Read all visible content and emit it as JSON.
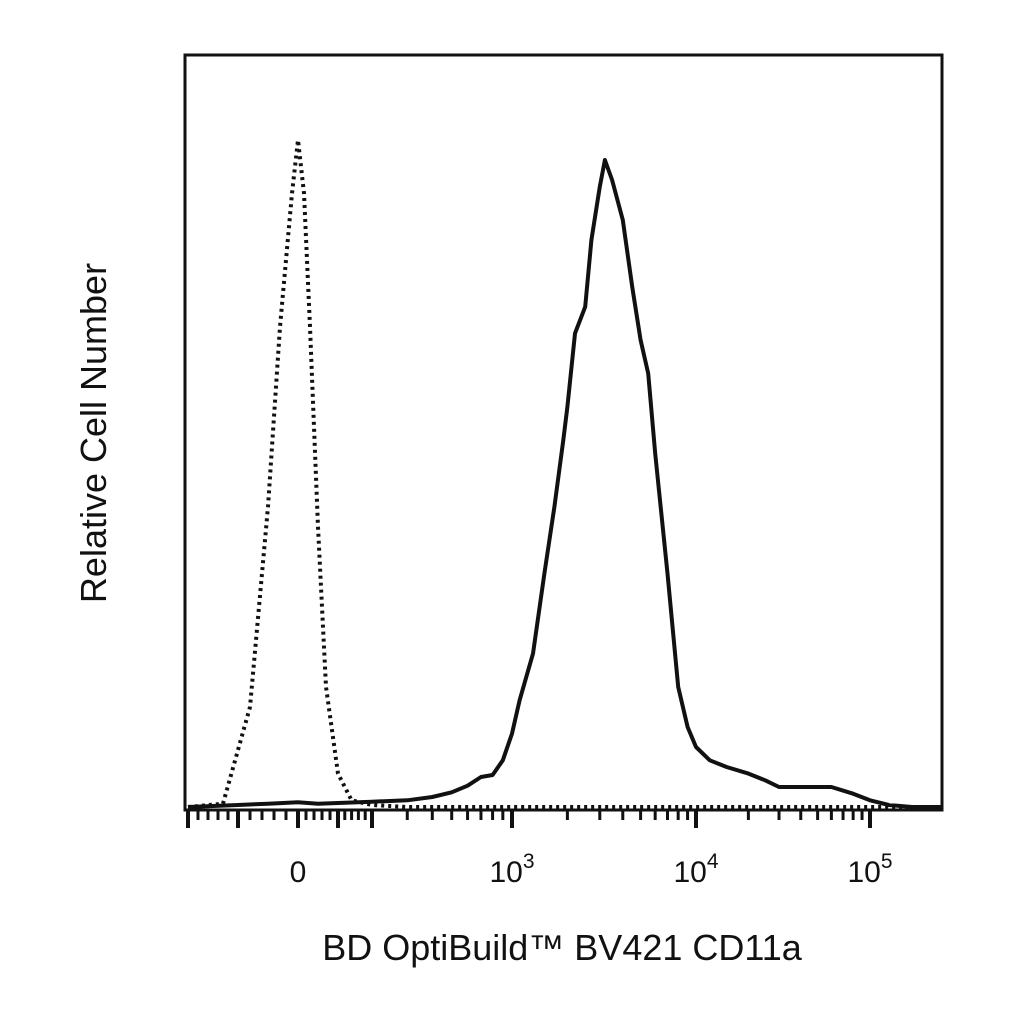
{
  "chart_data": {
    "type": "line",
    "title": "",
    "xlabel": "BD OptiBuild™ BV421 CD11a",
    "ylabel": "Relative Cell Number",
    "x_scale": "biexponential",
    "xlim": [
      -200,
      200000
    ],
    "ylim": [
      0,
      100
    ],
    "grid": false,
    "legend": "none",
    "x_ticks": [
      {
        "value": 0,
        "base": "0",
        "exp": ""
      },
      {
        "value": 1000,
        "base": "10",
        "exp": "3"
      },
      {
        "value": 10000,
        "base": "10",
        "exp": "4"
      },
      {
        "value": 100000,
        "base": "10",
        "exp": "5"
      }
    ],
    "series": [
      {
        "style": "dotted",
        "color": "#111111",
        "x": [
          -200,
          -130,
          -80,
          -50,
          -30,
          -10,
          0,
          15,
          30,
          50,
          70,
          100,
          140,
          200,
          300,
          500,
          1000,
          10000,
          200000
        ],
        "y": [
          0,
          0.5,
          15,
          45,
          72,
          92,
          100,
          92,
          72,
          42,
          18,
          5,
          1,
          0.3,
          0,
          0,
          0,
          0,
          0
        ]
      },
      {
        "style": "solid",
        "color": "#111111",
        "x": [
          -200,
          -100,
          -50,
          0,
          50,
          100,
          200,
          300,
          400,
          500,
          600,
          700,
          800,
          900,
          1000,
          1100,
          1300,
          1500,
          1700,
          1900,
          2000,
          2200,
          2500,
          2700,
          3000,
          3200,
          3500,
          4000,
          4500,
          5000,
          5500,
          6000,
          7000,
          8000,
          9000,
          10000,
          12000,
          15000,
          20000,
          25000,
          30000,
          40000,
          50000,
          60000,
          80000,
          100000,
          120000,
          150000,
          200000
        ],
        "y": [
          0,
          0.3,
          0.5,
          0.7,
          0.5,
          0.6,
          0.8,
          1,
          1.5,
          2.2,
          3.2,
          4.5,
          4.8,
          7,
          11,
          16,
          23,
          35,
          45,
          55,
          60,
          71,
          75,
          85,
          93,
          97,
          94,
          88,
          78,
          70,
          65,
          53,
          35,
          18,
          12,
          9,
          7,
          6,
          5,
          4,
          3,
          3,
          3,
          3,
          2,
          1,
          0.3,
          0,
          0
        ]
      }
    ]
  }
}
